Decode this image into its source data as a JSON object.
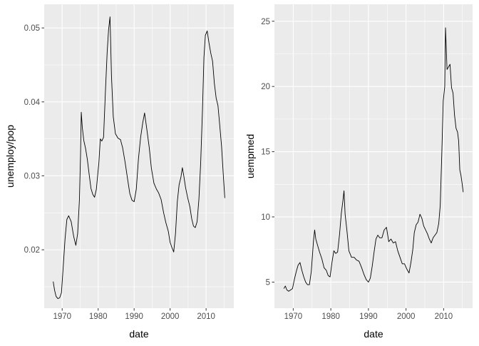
{
  "colors": {
    "panel_bg": "#EBEBEB",
    "grid_major": "#FFFFFF",
    "line": "#000000",
    "tick_text": "#4D4D4D"
  },
  "chart_data": [
    {
      "type": "line",
      "title": "",
      "xlabel": "date",
      "ylabel": "unemploy/pop",
      "xlim": [
        1965.0,
        2017.7
      ],
      "ylim": [
        0.0121,
        0.0532
      ],
      "xticks": [
        1970,
        1980,
        1990,
        2000,
        2010
      ],
      "xtick_labels": [
        "1970",
        "1980",
        "1990",
        "2000",
        "2010"
      ],
      "yticks": [
        0.02,
        0.03,
        0.04,
        0.05
      ],
      "ytick_labels": [
        "0.02",
        "0.03",
        "0.04",
        "0.05"
      ],
      "grid": true,
      "legend": "none",
      "series": [
        {
          "x": [
            1967.5,
            1967.9,
            1968.3,
            1968.8,
            1969.3,
            1969.8,
            1970.3,
            1970.8,
            1971.3,
            1971.8,
            1972.5,
            1973.2,
            1973.8,
            1974.3,
            1974.8,
            1975.1,
            1975.3,
            1975.6,
            1976.0,
            1976.5,
            1977.0,
            1977.5,
            1978.0,
            1978.5,
            1979.0,
            1979.5,
            1980.2,
            1980.6,
            1981.0,
            1981.5,
            1982.0,
            1982.5,
            1982.9,
            1983.3,
            1983.7,
            1984.2,
            1984.8,
            1985.5,
            1986.2,
            1986.8,
            1987.5,
            1988.2,
            1988.8,
            1989.4,
            1990.0,
            1990.6,
            1991.2,
            1991.8,
            1992.4,
            1992.9,
            1993.5,
            1994.2,
            1994.8,
            1995.5,
            1996.2,
            1996.8,
            1997.5,
            1998.2,
            1998.8,
            1999.5,
            2000.0,
            2000.5,
            2001.0,
            2001.5,
            2002.0,
            2002.5,
            2003.0,
            2003.4,
            2003.8,
            2004.3,
            2004.9,
            2005.5,
            2006.0,
            2006.5,
            2007.0,
            2007.5,
            2008.0,
            2008.5,
            2009.0,
            2009.4,
            2009.8,
            2010.3,
            2010.8,
            2011.3,
            2011.8,
            2012.3,
            2012.8,
            2013.3,
            2013.8,
            2014.3,
            2014.8,
            2015.2
          ],
          "y": [
            0.0157,
            0.0145,
            0.0137,
            0.0134,
            0.0135,
            0.0142,
            0.0178,
            0.0215,
            0.0241,
            0.0246,
            0.0238,
            0.0218,
            0.0206,
            0.0222,
            0.0268,
            0.0328,
            0.0386,
            0.0365,
            0.0348,
            0.0337,
            0.0322,
            0.0302,
            0.0283,
            0.0275,
            0.0271,
            0.0282,
            0.0318,
            0.035,
            0.0347,
            0.0352,
            0.0412,
            0.0467,
            0.0498,
            0.0515,
            0.0435,
            0.038,
            0.0357,
            0.0351,
            0.0349,
            0.0338,
            0.0318,
            0.0295,
            0.0276,
            0.0267,
            0.0265,
            0.0282,
            0.0323,
            0.0352,
            0.0372,
            0.0385,
            0.0364,
            0.0338,
            0.031,
            0.029,
            0.0282,
            0.0277,
            0.0268,
            0.025,
            0.0237,
            0.0225,
            0.021,
            0.0203,
            0.0197,
            0.0222,
            0.0265,
            0.0288,
            0.0298,
            0.0311,
            0.03,
            0.0284,
            0.027,
            0.0258,
            0.0242,
            0.0232,
            0.023,
            0.0238,
            0.0268,
            0.0318,
            0.039,
            0.046,
            0.049,
            0.0496,
            0.048,
            0.0466,
            0.0455,
            0.0425,
            0.0405,
            0.0395,
            0.0368,
            0.034,
            0.03,
            0.027
          ]
        }
      ]
    },
    {
      "type": "line",
      "title": "",
      "xlabel": "date",
      "ylabel": "uempmed",
      "xlim": [
        1965.0,
        2017.7
      ],
      "ylim": [
        3.0,
        26.3
      ],
      "xticks": [
        1970,
        1980,
        1990,
        2000,
        2010
      ],
      "xtick_labels": [
        "1970",
        "1980",
        "1990",
        "2000",
        "2010"
      ],
      "yticks": [
        5,
        10,
        15,
        20,
        25
      ],
      "ytick_labels": [
        "5",
        "10",
        "15",
        "20",
        "25"
      ],
      "grid": true,
      "legend": "none",
      "series": [
        {
          "x": [
            1967.5,
            1967.9,
            1968.3,
            1968.8,
            1969.3,
            1969.8,
            1970.3,
            1970.8,
            1971.3,
            1971.8,
            1972.3,
            1972.8,
            1973.3,
            1973.8,
            1974.3,
            1974.8,
            1975.1,
            1975.4,
            1975.7,
            1976.0,
            1976.5,
            1977.0,
            1977.6,
            1978.2,
            1978.8,
            1979.3,
            1979.8,
            1980.3,
            1980.8,
            1981.3,
            1981.8,
            1982.3,
            1982.8,
            1983.2,
            1983.5,
            1983.8,
            1984.3,
            1984.8,
            1985.5,
            1986.2,
            1986.8,
            1987.5,
            1988.2,
            1988.8,
            1989.4,
            1990.0,
            1990.5,
            1991.0,
            1991.5,
            1992.0,
            1992.5,
            1993.0,
            1993.6,
            1994.2,
            1994.8,
            1995.4,
            1996.0,
            1996.6,
            1997.2,
            1997.8,
            1998.4,
            1999.0,
            1999.6,
            2000.2,
            2000.8,
            2001.3,
            2001.8,
            2002.2,
            2002.7,
            2003.2,
            2003.7,
            2004.2,
            2004.7,
            2005.2,
            2005.7,
            2006.2,
            2006.7,
            2007.2,
            2007.7,
            2008.2,
            2008.7,
            2009.1,
            2009.5,
            2009.9,
            2010.3,
            2010.5,
            2010.9,
            2011.3,
            2011.7,
            2012.1,
            2012.5,
            2012.9,
            2013.3,
            2013.7,
            2014.0,
            2014.3,
            2014.6,
            2014.9,
            2015.2
          ],
          "y": [
            4.5,
            4.7,
            4.4,
            4.3,
            4.4,
            4.5,
            5.2,
            5.8,
            6.3,
            6.5,
            5.9,
            5.4,
            5.0,
            4.8,
            4.8,
            5.8,
            7.0,
            8.2,
            9.0,
            8.3,
            7.8,
            7.3,
            6.8,
            6.1,
            5.9,
            5.5,
            5.4,
            6.5,
            7.4,
            7.2,
            7.3,
            8.6,
            10.3,
            11.2,
            12.0,
            10.2,
            8.9,
            7.4,
            6.9,
            6.9,
            6.7,
            6.6,
            6.1,
            5.6,
            5.2,
            5.0,
            5.3,
            6.2,
            7.3,
            8.3,
            8.6,
            8.4,
            8.4,
            9.0,
            9.2,
            8.1,
            8.3,
            8.0,
            8.1,
            7.4,
            6.9,
            6.4,
            6.4,
            6.0,
            5.7,
            6.5,
            7.5,
            8.8,
            9.4,
            9.6,
            10.2,
            9.9,
            9.3,
            9.0,
            8.7,
            8.3,
            8.0,
            8.4,
            8.6,
            8.8,
            9.5,
            10.9,
            14.7,
            18.9,
            20.0,
            24.5,
            21.3,
            21.5,
            21.7,
            19.9,
            19.5,
            17.8,
            16.8,
            16.5,
            15.8,
            13.6,
            13.2,
            12.6,
            11.9
          ]
        }
      ]
    }
  ]
}
